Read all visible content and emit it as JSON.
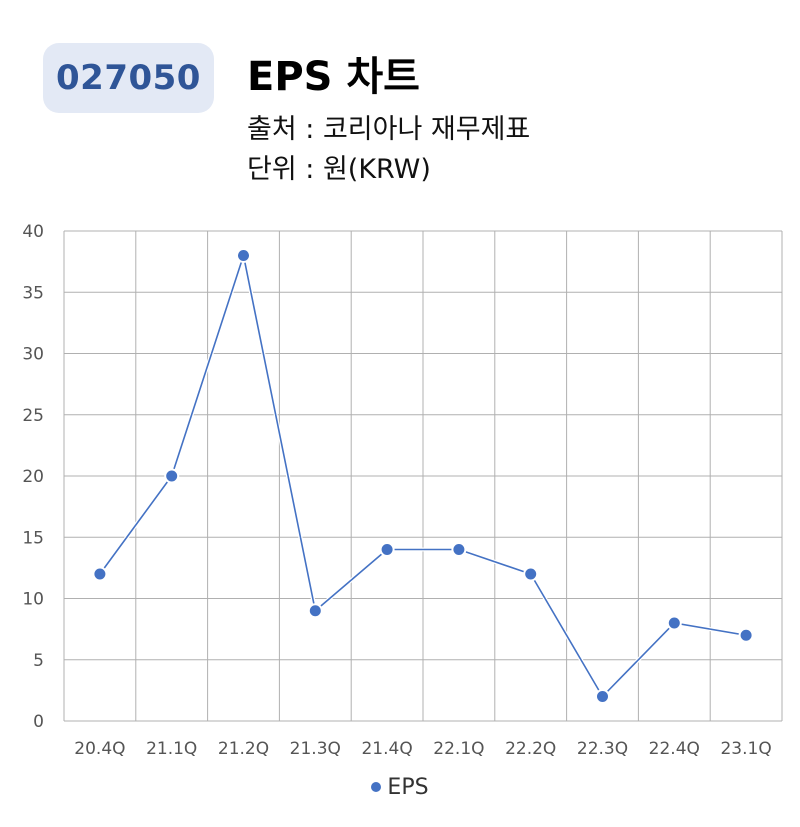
{
  "header": {
    "code": "027050",
    "title": "EPS 차트",
    "source": "출처 : 코리아나 재무제표",
    "unit": "단위 : 원(KRW)"
  },
  "colors": {
    "series": "#4472c4",
    "badge_bg": "#e3e9f5",
    "badge_text": "#2f5597",
    "grid": "#b0b0b0"
  },
  "chart_data": {
    "type": "line",
    "categories": [
      "20.4Q",
      "21.1Q",
      "21.2Q",
      "21.3Q",
      "21.4Q",
      "22.1Q",
      "22.2Q",
      "22.3Q",
      "22.4Q",
      "23.1Q"
    ],
    "series": [
      {
        "name": "EPS",
        "values": [
          12,
          20,
          38,
          9,
          14,
          14,
          12,
          2,
          8,
          7
        ]
      }
    ],
    "ylim": [
      0,
      40
    ],
    "yticks": [
      0,
      5,
      10,
      15,
      20,
      25,
      30,
      35,
      40
    ],
    "grid": true,
    "legend": "bottom-center"
  }
}
